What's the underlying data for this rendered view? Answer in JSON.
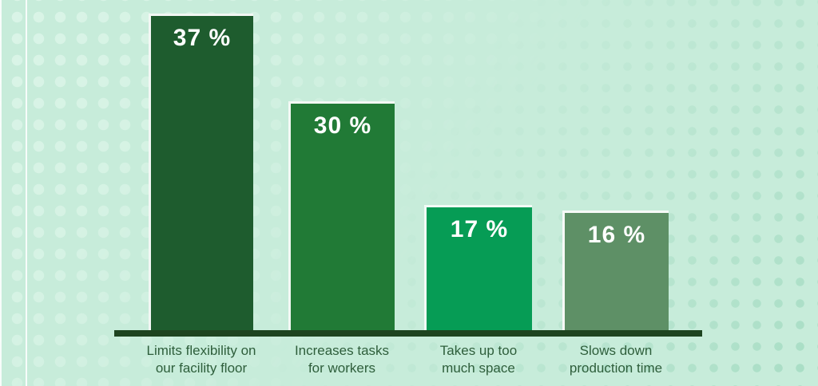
{
  "background": {
    "base_color": "#c7ecda",
    "dot_light_color": "#daf4e7",
    "dot_dark_color": "#a6dcc3"
  },
  "axis": {
    "color": "#1e4420"
  },
  "bars": [
    {
      "value_display": "37 %",
      "label_lines": [
        "Limits flexibility on",
        "our facility floor"
      ],
      "fill": "#1e5c2e",
      "shadow": "#569764"
    },
    {
      "value_display": "30 %",
      "label_lines": [
        "Increases tasks",
        "for workers"
      ],
      "fill": "#217a36",
      "shadow": "#6aaa77"
    },
    {
      "value_display": "17 %",
      "label_lines": [
        "Takes up too",
        "much space"
      ],
      "fill": "#069c55",
      "shadow": "#73b98d"
    },
    {
      "value_display": "16 %",
      "label_lines": [
        "Slows down",
        "production time"
      ],
      "fill": "#5e9066",
      "shadow": "#88b291"
    }
  ],
  "chart_data": {
    "type": "bar",
    "categories": [
      "Limits flexibility on our facility floor",
      "Increases tasks for workers",
      "Takes up too much space",
      "Slows down production time"
    ],
    "values": [
      37,
      30,
      17,
      16
    ],
    "value_suffix": "%",
    "title": "",
    "xlabel": "",
    "ylabel": "",
    "ylim": [
      0,
      40
    ],
    "grid": false,
    "legend": false,
    "data_labels": "inside-top",
    "bar_colors": [
      "#1e5c2e",
      "#217a36",
      "#069c55",
      "#5e9066"
    ],
    "bar_shadow_colors": [
      "#569764",
      "#6aaa77",
      "#73b98d",
      "#88b291"
    ]
  }
}
